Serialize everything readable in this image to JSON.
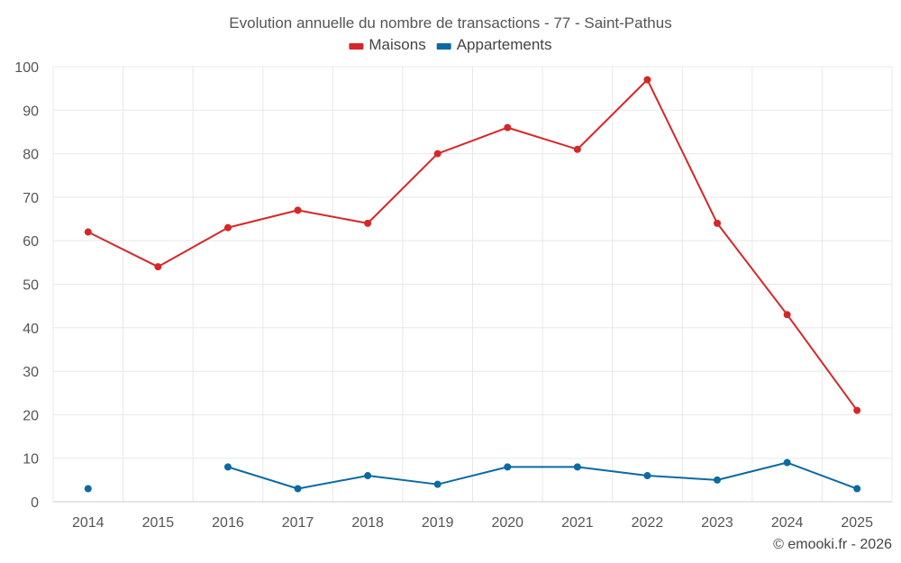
{
  "chart_data": {
    "type": "line",
    "title": "Evolution annuelle du nombre de transactions - 77 - Saint-Pathus",
    "categories": [
      "2014",
      "2015",
      "2016",
      "2017",
      "2018",
      "2019",
      "2020",
      "2021",
      "2022",
      "2023",
      "2024",
      "2025"
    ],
    "ylim": [
      0,
      100
    ],
    "yticks": [
      0,
      10,
      20,
      30,
      40,
      50,
      60,
      70,
      80,
      90,
      100
    ],
    "grid": true,
    "legend_position": "top-center",
    "series": [
      {
        "name": "Maisons",
        "color": "#d62728",
        "values": [
          62,
          54,
          63,
          67,
          64,
          80,
          86,
          81,
          97,
          64,
          43,
          21
        ]
      },
      {
        "name": "Appartements",
        "color": "#0b6aa2",
        "values": [
          3,
          null,
          8,
          3,
          6,
          4,
          8,
          8,
          6,
          5,
          9,
          3
        ]
      }
    ],
    "xlabel": "",
    "ylabel": ""
  },
  "credit": "© emooki.fr - 2026"
}
